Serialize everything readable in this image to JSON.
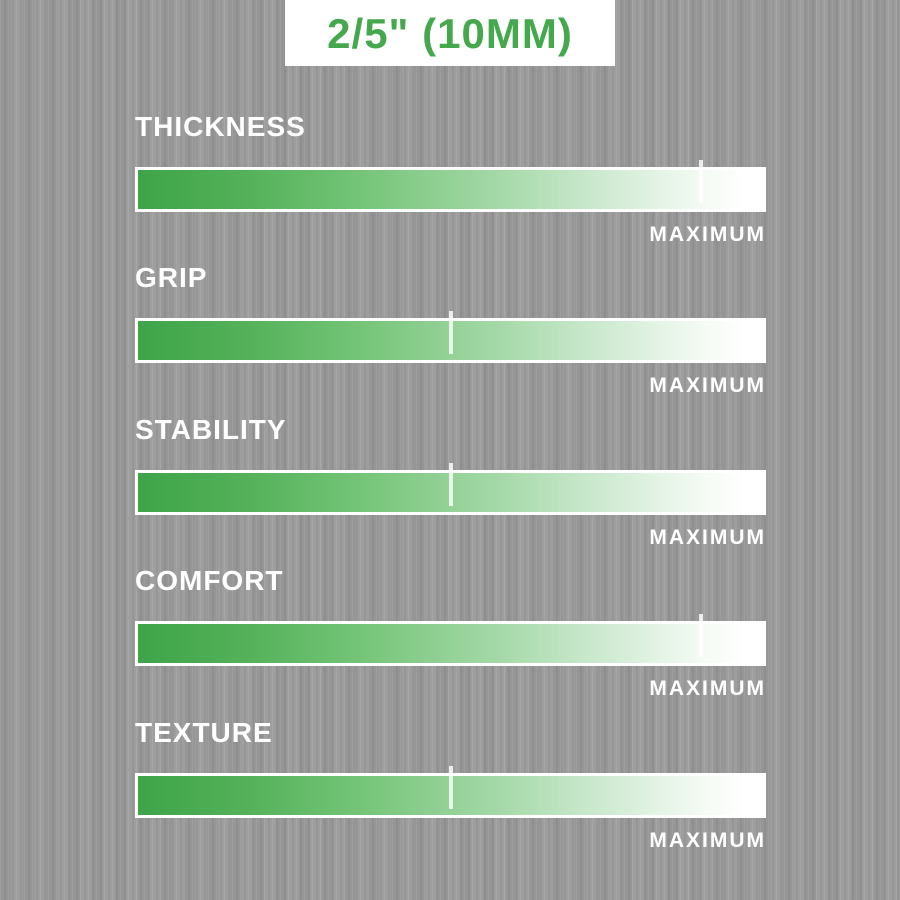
{
  "badge": {
    "text": "2/5\" (10MM)"
  },
  "sections": [
    {
      "label": "THICKNESS",
      "value": 0.9,
      "axis_label": "MAXIMUM"
    },
    {
      "label": "GRIP",
      "value": 0.5,
      "axis_label": "MAXIMUM"
    },
    {
      "label": "STABILITY",
      "value": 0.5,
      "axis_label": "MAXIMUM"
    },
    {
      "label": "COMFORT",
      "value": 0.9,
      "axis_label": "MAXIMUM"
    },
    {
      "label": "TEXTURE",
      "value": 0.5,
      "axis_label": "MAXIMUM"
    }
  ],
  "colors": {
    "background_gray": "#9b9b9b",
    "accent_green": "#45a84d",
    "bar_gradient_start": "#3ea447",
    "bar_gradient_end": "#ffffff",
    "label_text": "#ffffff",
    "badge_background": "#ffffff"
  },
  "chart_data": {
    "type": "bar",
    "title": "2/5\" (10MM)",
    "categories": [
      "THICKNESS",
      "GRIP",
      "STABILITY",
      "COMFORT",
      "TEXTURE"
    ],
    "values": [
      0.9,
      0.5,
      0.5,
      0.9,
      0.5
    ],
    "xlabel": "",
    "ylabel": "",
    "value_range": [
      0,
      1
    ],
    "value_axis_end_label": "MAXIMUM",
    "orientation": "horizontal",
    "legend": "none",
    "grid": false,
    "notes": "Each attribute shown as a full-width green-to-white gradient bar; a light tick mark indicates the rating level relative to MAXIMUM (right end of bar)."
  }
}
